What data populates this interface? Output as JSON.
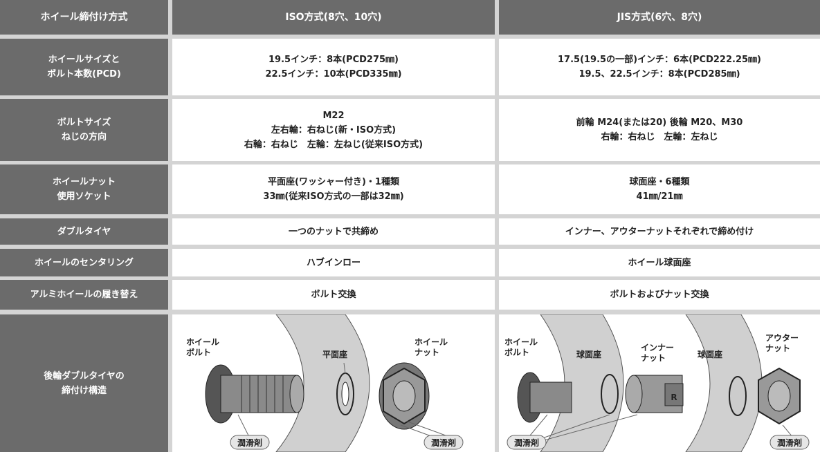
{
  "table": {
    "header": [
      "ホイール締付け方式",
      "ISO方式(8穴、10穴)",
      "JIS方式(6穴、8穴)"
    ],
    "rows": [
      [
        [
          "ホイールサイズと",
          "ボルト本数(PCD)"
        ],
        [
          "19.5インチ：8本(PCD275㎜)",
          "22.5インチ：10本(PCD335㎜)"
        ],
        [
          "17.5(19.5の一部)インチ：6本(PCD222.25㎜)",
          "19.5、22.5インチ：8本(PCD285㎜)"
        ]
      ],
      [
        [
          "ボルトサイズ",
          "ねじの方向"
        ],
        [
          "M22",
          "左右輪：右ねじ(新・ISO方式)",
          "右輪：右ねじ　左輪：左ねじ(従来ISO方式)"
        ],
        [
          "前輪 M24(または20) 後輪 M20、M30",
          "右輪：右ねじ　左輪：左ねじ"
        ]
      ],
      [
        [
          "ホイールナット",
          "使用ソケット"
        ],
        [
          "平面座(ワッシャー付き)・1種類",
          "33㎜(従来ISO方式の一部は32㎜)"
        ],
        [
          "球面座・6種類",
          "41㎜/21㎜"
        ]
      ],
      [
        [
          "ダブルタイヤ"
        ],
        [
          "一つのナットで共締め"
        ],
        [
          "インナー、アウターナットそれぞれで締め付け"
        ]
      ],
      [
        [
          "ホイールのセンタリング"
        ],
        [
          "ハブインロー"
        ],
        [
          "ホイール球面座"
        ]
      ],
      [
        [
          "アルミホイールの履き替え"
        ],
        [
          "ボルト交換"
        ],
        [
          "ボルトおよびナット交換"
        ]
      ],
      [
        [
          "後輪ダブルタイヤの",
          "締付け構造"
        ]
      ]
    ]
  },
  "diagrams": {
    "iso": {
      "labels": [
        [
          "ホイール",
          "ボルト"
        ],
        [
          "平面座"
        ],
        [
          "ホイール",
          "ナット"
        ],
        [
          "潤滑剤"
        ],
        [
          "潤滑剤"
        ]
      ]
    },
    "jis": {
      "labels": [
        [
          "ホイール",
          "ボルト"
        ],
        [
          "球面座"
        ],
        [
          "インナー",
          "ナット"
        ],
        [
          "球面座"
        ],
        [
          "アウター",
          "ナット"
        ],
        [
          "潤滑剤"
        ],
        [
          "潤滑剤"
        ],
        [
          "R"
        ]
      ]
    }
  }
}
